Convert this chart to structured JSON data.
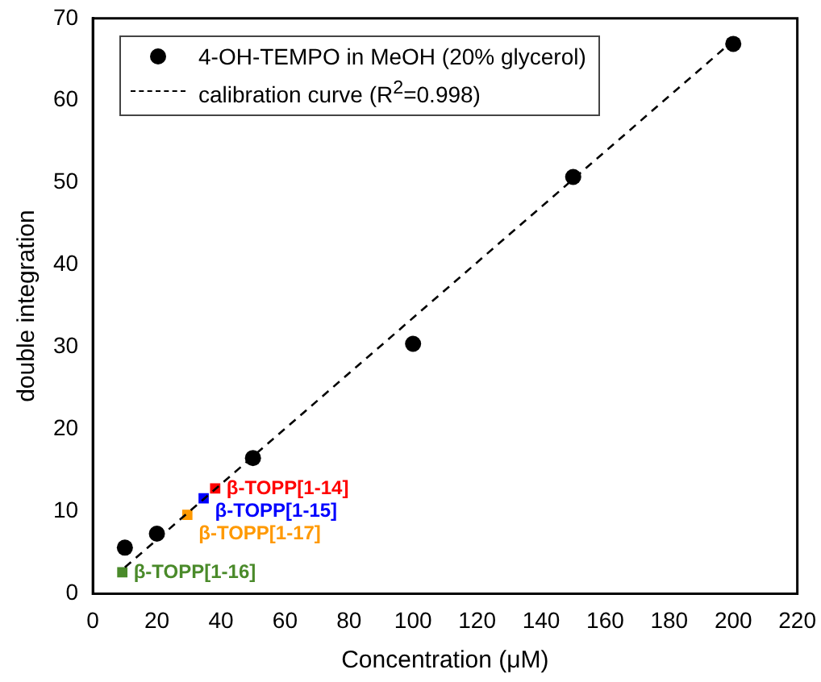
{
  "chart_data": {
    "type": "scatter",
    "xlabel": "Concentration (μM)",
    "ylabel": "double integration",
    "xlim": [
      0,
      220
    ],
    "xticks": [
      0,
      20,
      40,
      60,
      80,
      100,
      120,
      140,
      160,
      180,
      200,
      220
    ],
    "ylim": [
      0,
      70
    ],
    "yticks": [
      0,
      10,
      20,
      30,
      40,
      50,
      60,
      70
    ],
    "grid": false,
    "legend": "top left",
    "series": [
      {
        "name": "4-OH-TEMPO in MeOH (20% glycerol)",
        "type": "scatter",
        "marker": "circle",
        "color": "#000000",
        "x": [
          10,
          20,
          50,
          100,
          150,
          200
        ],
        "values": [
          5.6,
          7.3,
          16.5,
          30.4,
          50.7,
          66.9
        ]
      },
      {
        "name": "calibration curve (R$^{2}$=0.998)",
        "type": "line",
        "line_style": "dashed",
        "marker": "none",
        "color": "#000000",
        "x": [
          10,
          200
        ],
        "values": [
          3.2,
          67.3
        ]
      },
      {
        "name": "β-TOPP[1-14]",
        "type": "scatter",
        "marker": "square",
        "color": "#ff0000",
        "x": [
          38.2
        ],
        "values": [
          12.8
        ]
      },
      {
        "name": "β-TOPP[1-15]",
        "type": "scatter",
        "marker": "square",
        "color": "#0000ff",
        "x": [
          34.6
        ],
        "values": [
          11.6
        ]
      },
      {
        "name": "β-TOPP[1-17]",
        "type": "scatter",
        "marker": "square",
        "color": "#ff9900",
        "x": [
          29.5
        ],
        "values": [
          9.6
        ]
      },
      {
        "name": "β-TOPP[1-16]",
        "type": "scatter",
        "marker": "square",
        "color": "#4a8a2a",
        "x": [
          9.2
        ],
        "values": [
          2.6
        ]
      }
    ]
  }
}
